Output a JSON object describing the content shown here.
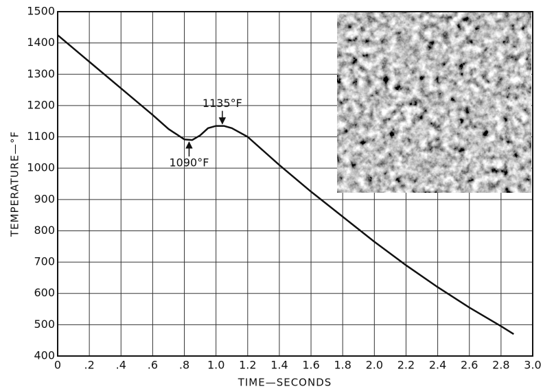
{
  "chart_data": {
    "type": "line",
    "xlabel": "TIME—SECONDS",
    "ylabel": "TEMPERATURE—°F",
    "x": [
      0,
      0.2,
      0.4,
      0.6,
      0.7,
      0.8,
      0.85,
      0.9,
      0.95,
      1.0,
      1.05,
      1.1,
      1.2,
      1.4,
      1.6,
      1.8,
      2.0,
      2.2,
      2.4,
      2.6,
      2.8,
      2.88
    ],
    "series": [
      {
        "color": "#111111",
        "values": [
          1425,
          1340,
          1255,
          1170,
          1125,
          1092,
          1090,
          1105,
          1128,
          1135,
          1135,
          1128,
          1100,
          1010,
          925,
          845,
          765,
          690,
          620,
          555,
          495,
          470
        ]
      }
    ],
    "annotations": [
      {
        "text": "1135°F",
        "x": 1.04,
        "y": 1135
      },
      {
        "text": "1090°F",
        "x": 0.83,
        "y": 1090
      }
    ],
    "xlim": [
      0,
      3
    ],
    "ylim": [
      400,
      1500
    ],
    "xticks": [
      0,
      {
        "value": 0.2,
        "label": ".2"
      },
      {
        "value": 0.4,
        "label": ".4"
      },
      {
        "value": 0.6,
        "label": ".6"
      },
      {
        "value": 0.8,
        "label": ".8"
      },
      {
        "value": 1,
        "label": "1.0"
      },
      1.2,
      1.4,
      1.6,
      1.8,
      {
        "value": 2,
        "label": "2.0"
      },
      2.2,
      2.4,
      2.6,
      2.8,
      {
        "value": 3,
        "label": "3.0"
      }
    ],
    "yticks": [
      400,
      500,
      600,
      700,
      800,
      900,
      1000,
      1100,
      1200,
      1300,
      1400,
      1500
    ],
    "grid": true
  }
}
